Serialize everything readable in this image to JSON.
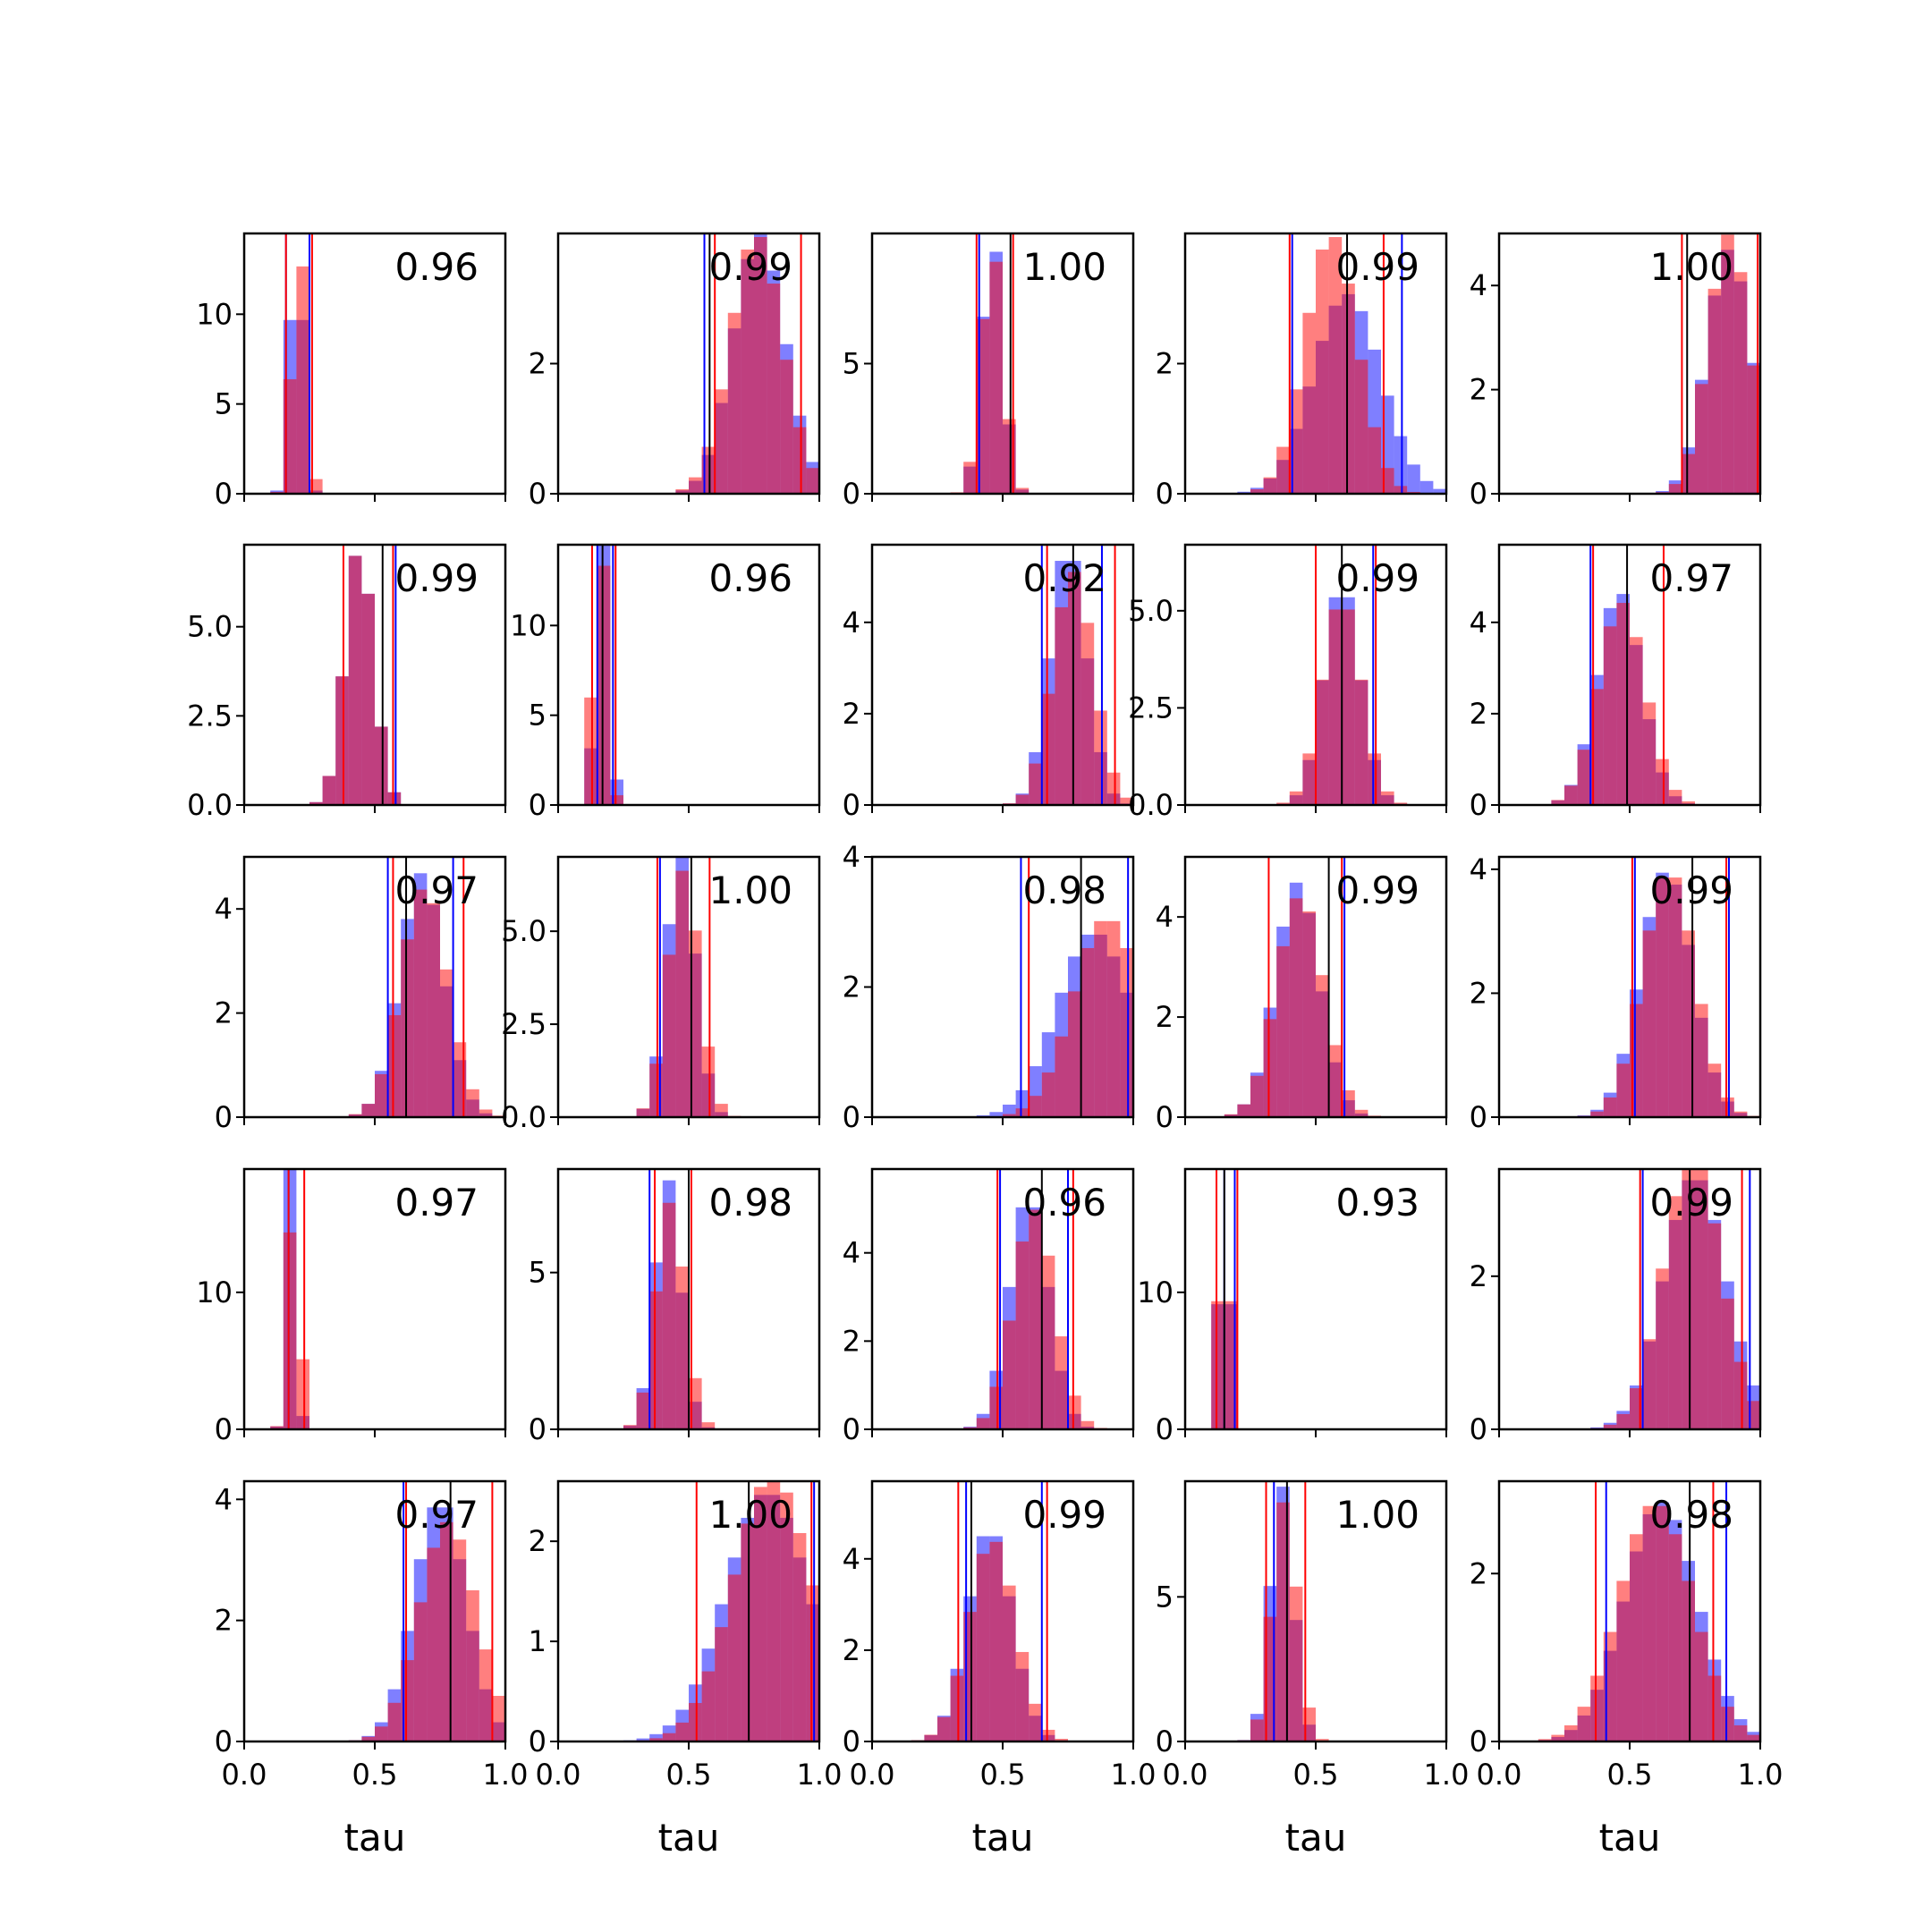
{
  "colors": {
    "blue": "#0000ff",
    "red": "#ff0000",
    "overlap": "#c0306e",
    "frame": "#000000",
    "median_line": "#000000"
  },
  "chart_data": {
    "type": "histogram-grid",
    "rows": 5,
    "cols": 5,
    "xlim": [
      0,
      1
    ],
    "xticks": [
      "0.0",
      "0.5",
      "1.0"
    ],
    "xlabel": "tau",
    "series": [
      {
        "color": "blue"
      },
      {
        "color": "red"
      }
    ],
    "panels": [
      {
        "label": "0.96",
        "ylim": [
          0,
          14.5
        ],
        "yticks": [
          "0",
          "5",
          "10"
        ],
        "blue": {
          "mean": 0.2,
          "sd": 0.025
        },
        "red": {
          "mean": 0.21,
          "sd": 0.027
        },
        "lines": {
          "blue": [
            0.16,
            0.25
          ],
          "red": [
            0.16,
            0.26
          ],
          "black": []
        }
      },
      {
        "label": "0.99",
        "ylim": [
          0,
          4.0
        ],
        "yticks": [
          "0",
          "2"
        ],
        "blue": {
          "mean": 0.77,
          "sd": 0.1
        },
        "red": {
          "mean": 0.76,
          "sd": 0.1
        },
        "lines": {
          "blue": [
            0.56
          ],
          "red": [
            0.6,
            0.93
          ],
          "black": [
            0.58
          ]
        }
      },
      {
        "label": "1.00",
        "ylim": [
          0,
          10.0
        ],
        "yticks": [
          "0",
          "5"
        ],
        "blue": {
          "mean": 0.46,
          "sd": 0.04
        },
        "red": {
          "mean": 0.46,
          "sd": 0.042
        },
        "lines": {
          "blue": [
            0.41
          ],
          "red": [
            0.4,
            0.54
          ],
          "black": [
            0.53
          ]
        }
      },
      {
        "label": "0.99",
        "ylim": [
          0,
          4.0
        ],
        "yticks": [
          "0",
          "2"
        ],
        "blue": {
          "mean": 0.62,
          "sd": 0.13
        },
        "red": {
          "mean": 0.56,
          "sd": 0.1
        },
        "lines": {
          "blue": [
            0.41,
            0.83
          ],
          "red": [
            0.4,
            0.76
          ],
          "black": [
            0.62
          ]
        }
      },
      {
        "label": "1.00",
        "ylim": [
          0,
          5.0
        ],
        "yticks": [
          "0",
          "2",
          "4"
        ],
        "blue": {
          "mean": 0.88,
          "sd": 0.085
        },
        "red": {
          "mean": 0.88,
          "sd": 0.08
        },
        "lines": {
          "blue": [
            1.0
          ],
          "red": [
            0.7,
            0.99
          ],
          "black": [
            0.72
          ]
        }
      },
      {
        "label": "0.99",
        "ylim": [
          0,
          7.3
        ],
        "yticks": [
          "0.0",
          "2.5",
          "5.0"
        ],
        "blue": {
          "mean": 0.44,
          "sd": 0.055
        },
        "red": {
          "mean": 0.44,
          "sd": 0.055
        },
        "lines": {
          "blue": [
            0.58
          ],
          "red": [
            0.38,
            0.57
          ],
          "black": [
            0.53
          ]
        }
      },
      {
        "label": "0.96",
        "ylim": [
          0,
          14.5
        ],
        "yticks": [
          "0",
          "5",
          "10"
        ],
        "blue": {
          "mean": 0.17,
          "sd": 0.025
        },
        "red": {
          "mean": 0.16,
          "sd": 0.025
        },
        "lines": {
          "blue": [
            0.15,
            0.21
          ],
          "red": [
            0.13,
            0.22
          ],
          "black": [
            0.17
          ]
        }
      },
      {
        "label": "0.92",
        "ylim": [
          0,
          5.7
        ],
        "yticks": [
          "0",
          "2",
          "4"
        ],
        "blue": {
          "mean": 0.75,
          "sd": 0.07
        },
        "red": {
          "mean": 0.77,
          "sd": 0.078
        },
        "lines": {
          "blue": [
            0.65,
            0.88
          ],
          "red": [
            0.67,
            0.93
          ],
          "black": [
            0.77
          ]
        }
      },
      {
        "label": "0.99",
        "ylim": [
          0,
          6.7
        ],
        "yticks": [
          "0.0",
          "2.5",
          "5.0"
        ],
        "blue": {
          "mean": 0.6,
          "sd": 0.07
        },
        "red": {
          "mean": 0.6,
          "sd": 0.075
        },
        "lines": {
          "blue": [
            0.72
          ],
          "red": [
            0.5,
            0.73
          ],
          "black": [
            0.6
          ]
        }
      },
      {
        "label": "0.97",
        "ylim": [
          0,
          5.7
        ],
        "yticks": [
          "0",
          "2",
          "4"
        ],
        "blue": {
          "mean": 0.46,
          "sd": 0.085
        },
        "red": {
          "mean": 0.47,
          "sd": 0.09
        },
        "lines": {
          "blue": [
            0.35
          ],
          "red": [
            0.36,
            0.63
          ],
          "black": [
            0.49
          ]
        }
      },
      {
        "label": "0.97",
        "ylim": [
          0,
          5.0
        ],
        "yticks": [
          "0",
          "2",
          "4"
        ],
        "blue": {
          "mean": 0.68,
          "sd": 0.085
        },
        "red": {
          "mean": 0.69,
          "sd": 0.09
        },
        "lines": {
          "blue": [
            0.55,
            0.8
          ],
          "red": [
            0.57,
            0.84
          ],
          "black": [
            0.62
          ]
        }
      },
      {
        "label": "1.00",
        "ylim": [
          0,
          7.0
        ],
        "yticks": [
          "0.0",
          "2.5",
          "5.0"
        ],
        "blue": {
          "mean": 0.47,
          "sd": 0.055
        },
        "red": {
          "mean": 0.48,
          "sd": 0.06
        },
        "lines": {
          "blue": [
            0.39
          ],
          "red": [
            0.38,
            0.58
          ],
          "black": [
            0.51
          ]
        }
      },
      {
        "label": "0.98",
        "ylim": [
          0,
          4.0
        ],
        "yticks": [
          "0",
          "2",
          "4"
        ],
        "blue": {
          "mean": 0.85,
          "sd": 0.14
        },
        "red": {
          "mean": 0.9,
          "sd": 0.13
        },
        "lines": {
          "blue": [
            0.57,
            0.98
          ],
          "red": [
            0.6,
            1.0
          ],
          "black": [
            0.8
          ]
        }
      },
      {
        "label": "0.99",
        "ylim": [
          0,
          5.2
        ],
        "yticks": [
          "0",
          "2",
          "4"
        ],
        "blue": {
          "mean": 0.43,
          "sd": 0.085
        },
        "red": {
          "mean": 0.44,
          "sd": 0.09
        },
        "lines": {
          "blue": [
            0.61
          ],
          "red": [
            0.32,
            0.6
          ],
          "black": [
            0.55
          ]
        }
      },
      {
        "label": "0.99",
        "ylim": [
          0,
          4.2
        ],
        "yticks": [
          "0",
          "2",
          "4"
        ],
        "blue": {
          "mean": 0.64,
          "sd": 0.1
        },
        "red": {
          "mean": 0.65,
          "sd": 0.1
        },
        "lines": {
          "blue": [
            0.52,
            0.88
          ],
          "red": [
            0.51,
            0.87
          ],
          "black": [
            0.74
          ]
        }
      },
      {
        "label": "0.97",
        "ylim": [
          0,
          19.0
        ],
        "yticks": [
          "0",
          "10"
        ],
        "blue": {
          "mean": 0.18,
          "sd": 0.018
        },
        "red": {
          "mean": 0.19,
          "sd": 0.022
        },
        "lines": {
          "blue": [
            0.17
          ],
          "red": [
            0.17,
            0.23
          ],
          "black": []
        }
      },
      {
        "label": "0.98",
        "ylim": [
          0,
          8.3
        ],
        "yticks": [
          "0",
          "5"
        ],
        "blue": {
          "mean": 0.42,
          "sd": 0.05
        },
        "red": {
          "mean": 0.43,
          "sd": 0.055
        },
        "lines": {
          "blue": [
            0.35,
            0.5
          ],
          "red": [
            0.37,
            0.51
          ],
          "black": [
            0.5
          ]
        }
      },
      {
        "label": "0.96",
        "ylim": [
          0,
          5.9
        ],
        "yticks": [
          "0",
          "2",
          "4"
        ],
        "blue": {
          "mean": 0.6,
          "sd": 0.075
        },
        "red": {
          "mean": 0.62,
          "sd": 0.08
        },
        "lines": {
          "blue": [
            0.49,
            0.75
          ],
          "red": [
            0.48,
            0.77
          ],
          "black": [
            0.65
          ]
        }
      },
      {
        "label": "0.93",
        "ylim": [
          0,
          19.0
        ],
        "yticks": [
          "0",
          "10"
        ],
        "blue": {
          "mean": 0.15,
          "sd": 0.02
        },
        "red": {
          "mean": 0.15,
          "sd": 0.021
        },
        "lines": {
          "blue": [
            0.15,
            0.19
          ],
          "red": [
            0.12,
            0.2
          ],
          "black": [
            0.15
          ]
        }
      },
      {
        "label": "0.99",
        "ylim": [
          0,
          3.4
        ],
        "yticks": [
          "0",
          "2"
        ],
        "blue": {
          "mean": 0.75,
          "sd": 0.12
        },
        "red": {
          "mean": 0.74,
          "sd": 0.11
        },
        "lines": {
          "blue": [
            0.55,
            0.96
          ],
          "red": [
            0.54,
            0.93
          ],
          "black": [
            0.73
          ]
        }
      },
      {
        "label": "0.97",
        "ylim": [
          0,
          4.3
        ],
        "yticks": [
          "0",
          "2",
          "4"
        ],
        "blue": {
          "mean": 0.75,
          "sd": 0.1
        },
        "red": {
          "mean": 0.78,
          "sd": 0.11
        },
        "lines": {
          "blue": [
            0.61
          ],
          "red": [
            0.62,
            0.95
          ],
          "black": [
            0.79
          ]
        }
      },
      {
        "label": "1.00",
        "ylim": [
          0,
          2.6
        ],
        "yticks": [
          "0",
          "1",
          "2"
        ],
        "blue": {
          "mean": 0.8,
          "sd": 0.16
        },
        "red": {
          "mean": 0.82,
          "sd": 0.15
        },
        "lines": {
          "blue": [
            0.98
          ],
          "red": [
            0.53,
            0.97
          ],
          "black": [
            0.73
          ]
        }
      },
      {
        "label": "0.99",
        "ylim": [
          0,
          5.7
        ],
        "yticks": [
          "0",
          "2",
          "4"
        ],
        "blue": {
          "mean": 0.45,
          "sd": 0.085
        },
        "red": {
          "mean": 0.46,
          "sd": 0.09
        },
        "lines": {
          "blue": [
            0.36,
            0.65
          ],
          "red": [
            0.33,
            0.67
          ],
          "black": [
            0.38
          ]
        }
      },
      {
        "label": "1.00",
        "ylim": [
          0,
          9.0
        ],
        "yticks": [
          "0",
          "5"
        ],
        "blue": {
          "mean": 0.37,
          "sd": 0.045
        },
        "red": {
          "mean": 0.38,
          "sd": 0.048
        },
        "lines": {
          "blue": [
            0.34
          ],
          "red": [
            0.31,
            0.46
          ],
          "black": [
            0.39
          ]
        }
      },
      {
        "label": "0.98",
        "ylim": [
          0,
          3.1
        ],
        "yticks": [
          "0",
          "2"
        ],
        "blue": {
          "mean": 0.62,
          "sd": 0.14
        },
        "red": {
          "mean": 0.6,
          "sd": 0.14
        },
        "lines": {
          "blue": [
            0.41,
            0.87
          ],
          "red": [
            0.37,
            0.82
          ],
          "black": [
            0.73
          ]
        }
      }
    ]
  }
}
